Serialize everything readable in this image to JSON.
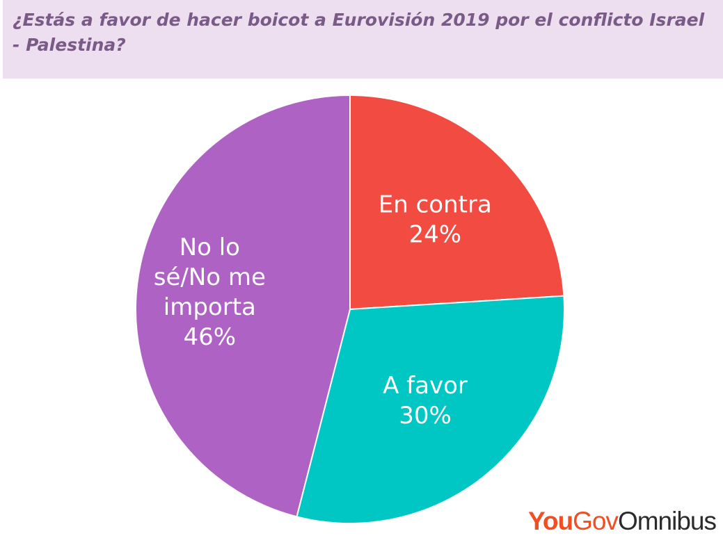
{
  "chart_data": {
    "type": "pie",
    "title": "¿Estás a favor de hacer boicot a Eurovisión 2019 por el conflicto Israel - Palestina?",
    "slices": [
      {
        "label_lines": [
          "En contra",
          "24%"
        ],
        "value": 24,
        "color": "#f24b42"
      },
      {
        "label_lines": [
          "A favor",
          "30%"
        ],
        "value": 30,
        "color": "#00c7c3"
      },
      {
        "label_lines": [
          "No lo",
          "sé/No me",
          "importa",
          "46%"
        ],
        "value": 46,
        "color": "#ad62c4"
      }
    ]
  },
  "logo": {
    "part1": "You",
    "part2": "Gov",
    "part3": "Omnibus"
  }
}
